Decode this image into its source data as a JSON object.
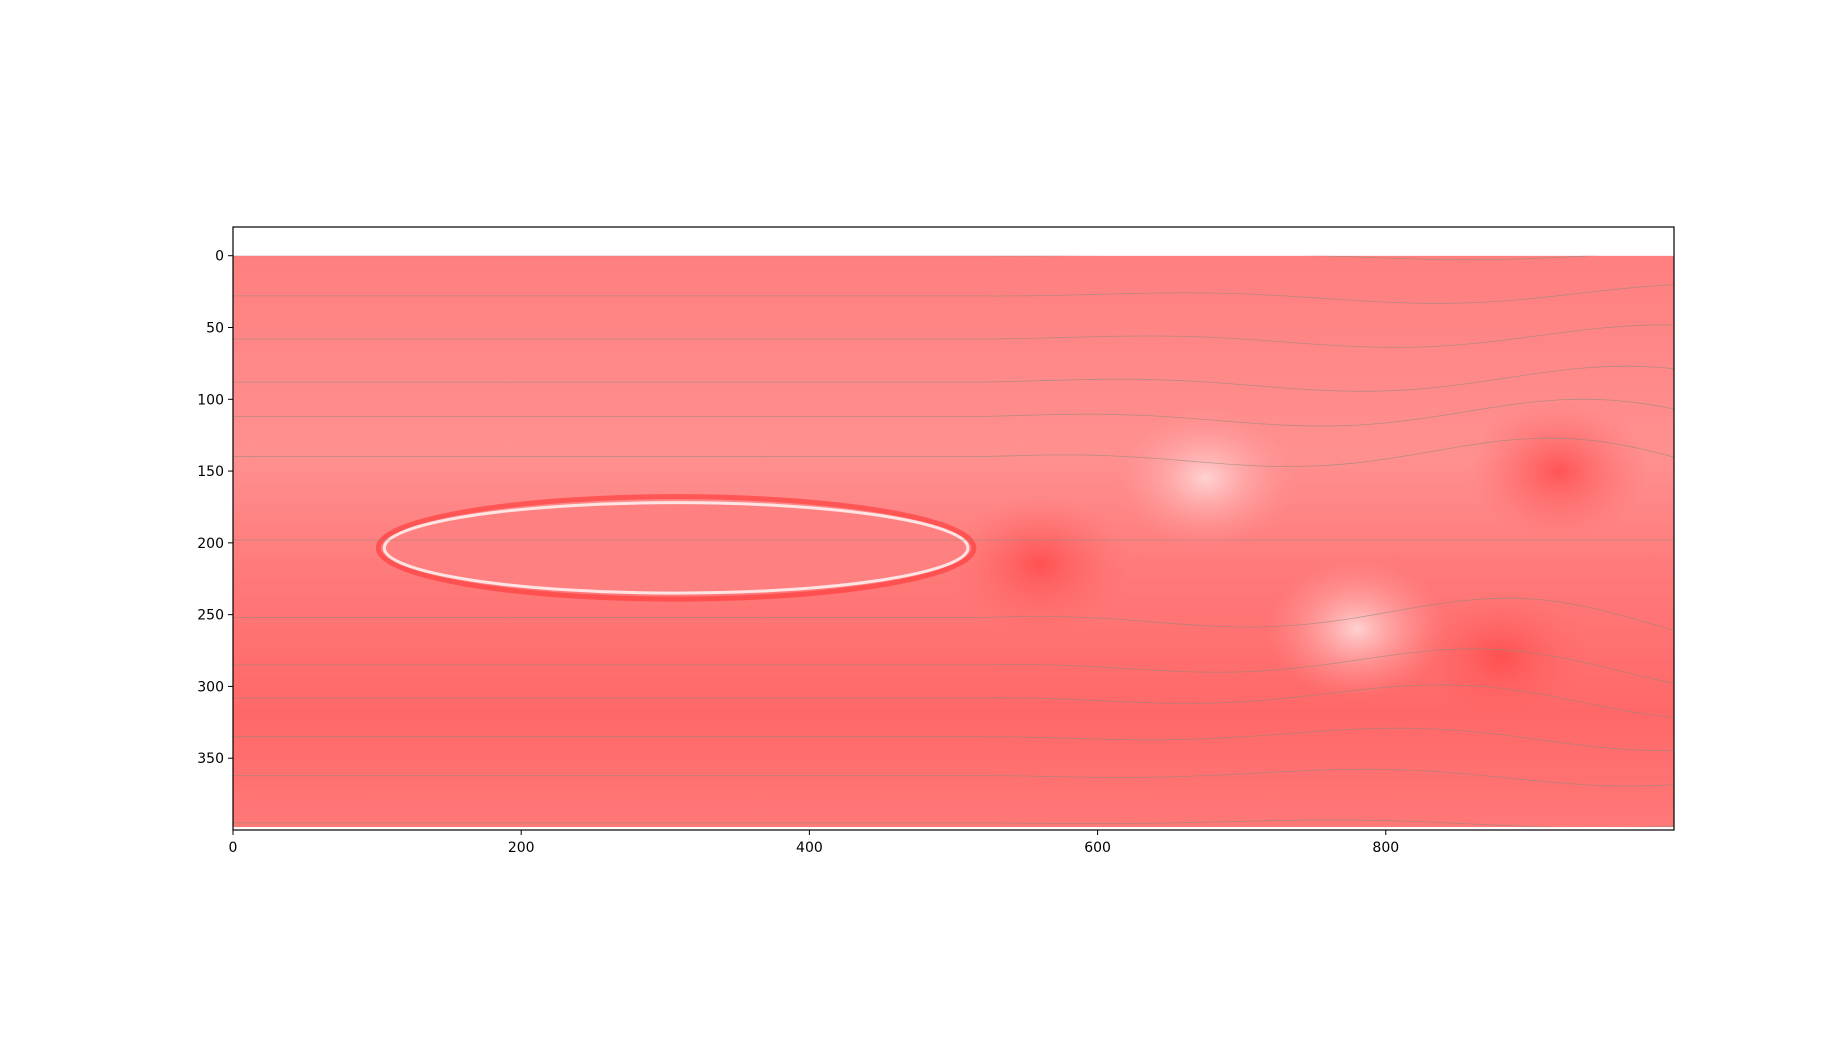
{
  "chart_data": {
    "type": "heatmap",
    "title": "",
    "xlabel": "",
    "ylabel": "",
    "xlim": [
      0,
      1000
    ],
    "ylim": [
      400,
      -20
    ],
    "x_ticks": [
      0,
      200,
      400,
      600,
      800
    ],
    "y_ticks": [
      0,
      50,
      100,
      150,
      200,
      250,
      300,
      350
    ],
    "grid": false,
    "colors": {
      "field_base": "#ff7f7f",
      "field_light": "#ff9595",
      "field_dark": "#ff6464",
      "streamline": "#8a8a7a",
      "axis": "#000000"
    },
    "field_description_free": true,
    "obstacle": {
      "shape": "ellipse",
      "x_range": [
        105,
        510
      ],
      "y_range": [
        172,
        235
      ]
    },
    "vortices": [
      {
        "x": 560,
        "y": 215,
        "sign": "dark"
      },
      {
        "x": 675,
        "y": 155,
        "sign": "light"
      },
      {
        "x": 780,
        "y": 260,
        "sign": "light"
      },
      {
        "x": 880,
        "y": 280,
        "sign": "dark"
      },
      {
        "x": 920,
        "y": 150,
        "sign": "dark"
      }
    ],
    "streamlines": [
      {
        "y0": 0,
        "amp": 4,
        "phase": 0.0
      },
      {
        "y0": 28,
        "amp": 8,
        "phase": 0.4
      },
      {
        "y0": 58,
        "amp": 10,
        "phase": 0.9
      },
      {
        "y0": 88,
        "amp": 12,
        "phase": 1.3
      },
      {
        "y0": 112,
        "amp": 14,
        "phase": 1.8
      },
      {
        "y0": 140,
        "amp": 16,
        "phase": 2.2
      },
      {
        "y0": 198,
        "amp": 0,
        "phase": 0.0
      },
      {
        "y0": 252,
        "amp": 18,
        "phase": 2.7
      },
      {
        "y0": 285,
        "amp": 16,
        "phase": 3.1
      },
      {
        "y0": 308,
        "amp": 14,
        "phase": 3.5
      },
      {
        "y0": 335,
        "amp": 10,
        "phase": 4.0
      },
      {
        "y0": 362,
        "amp": 8,
        "phase": 4.4
      },
      {
        "y0": 395,
        "amp": 4,
        "phase": 4.8
      }
    ]
  }
}
